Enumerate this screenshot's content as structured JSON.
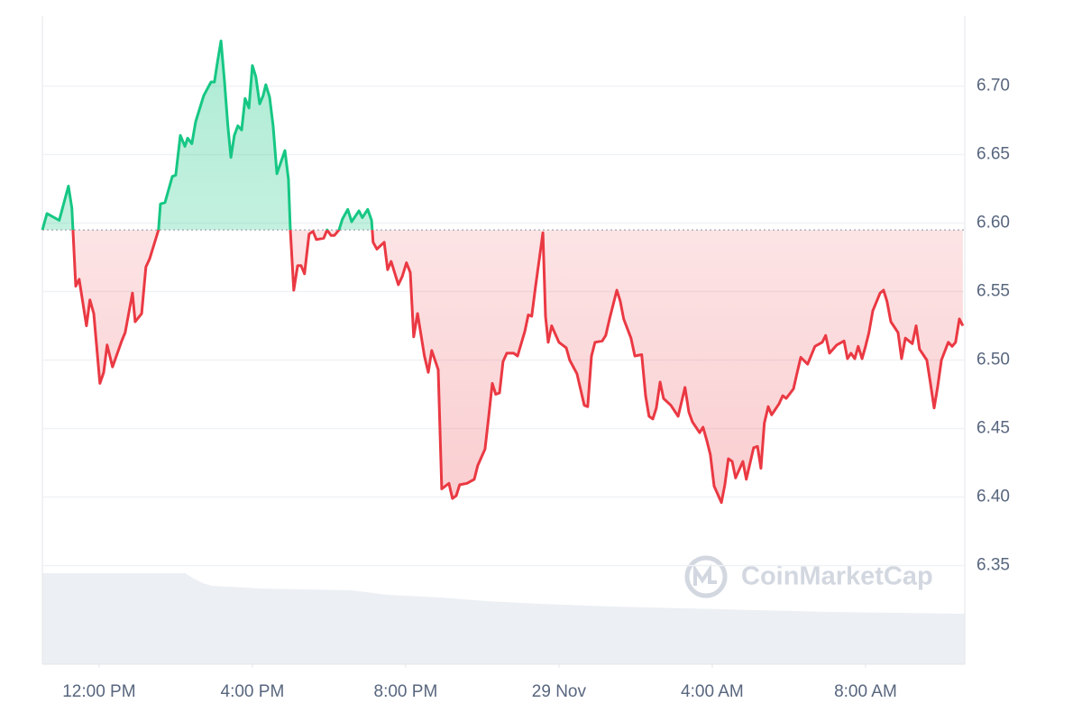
{
  "chart_data": {
    "type": "area",
    "x": [
      10.52,
      10.64,
      10.96,
      11.2,
      11.29,
      11.39,
      11.48,
      11.67,
      11.76,
      11.86,
      12.02,
      12.12,
      12.21,
      12.35,
      12.59,
      12.68,
      12.87,
      12.94,
      13.11,
      13.22,
      13.32,
      13.55,
      13.6,
      13.72,
      13.91,
      14.0,
      14.12,
      14.24,
      14.31,
      14.42,
      14.52,
      14.73,
      14.92,
      15.01,
      15.08,
      15.18,
      15.27,
      15.36,
      15.44,
      15.53,
      15.62,
      15.72,
      15.81,
      15.91,
      16.0,
      16.09,
      16.19,
      16.28,
      16.35,
      16.45,
      16.54,
      16.64,
      16.75,
      16.85,
      16.94,
      16.99,
      17.08,
      17.18,
      17.27,
      17.36,
      17.48,
      17.58,
      17.67,
      17.86,
      17.95,
      18.05,
      18.14,
      18.26,
      18.35,
      18.49,
      18.59,
      18.78,
      18.87,
      19.01,
      19.11,
      19.15,
      19.25,
      19.44,
      19.53,
      19.62,
      19.81,
      19.91,
      20.02,
      20.12,
      20.21,
      20.31,
      20.49,
      20.59,
      20.68,
      20.85,
      20.94,
      21.13,
      21.22,
      21.32,
      21.41,
      21.6,
      21.79,
      21.88,
      22.07,
      22.16,
      22.26,
      22.35,
      22.45,
      22.54,
      22.64,
      22.82,
      22.92,
      23.11,
      23.2,
      23.29,
      23.39,
      23.58,
      23.65,
      23.72,
      23.81,
      24.0,
      24.19,
      24.28,
      24.47,
      24.66,
      24.75,
      24.85,
      24.94,
      25.13,
      25.22,
      25.32,
      25.51,
      25.6,
      25.69,
      25.88,
      25.98,
      26.16,
      26.26,
      26.35,
      26.45,
      26.54,
      26.64,
      26.73,
      26.92,
      27.11,
      27.29,
      27.39,
      27.48,
      27.67,
      27.76,
      27.86,
      27.95,
      28.05,
      28.24,
      28.33,
      28.42,
      28.52,
      28.61,
      28.8,
      28.89,
      29.08,
      29.18,
      29.27,
      29.36,
      29.46,
      29.55,
      29.74,
      29.84,
      29.93,
      30.12,
      30.21,
      30.31,
      30.49,
      30.68,
      30.87,
      30.96,
      31.06,
      31.25,
      31.44,
      31.53,
      31.62,
      31.72,
      31.81,
      31.91,
      32.0,
      32.09,
      32.19,
      32.38,
      32.47,
      32.56,
      32.66,
      32.85,
      32.94,
      33.04,
      33.22,
      33.32,
      33.41,
      33.6,
      33.69,
      33.79,
      33.88,
      33.98,
      34.16,
      34.26,
      34.35,
      34.45,
      34.54
    ],
    "values": [
      6.595,
      6.607,
      6.602,
      6.627,
      6.611,
      6.554,
      6.559,
      6.525,
      6.544,
      6.534,
      6.483,
      6.491,
      6.511,
      6.495,
      6.514,
      6.52,
      6.549,
      6.528,
      6.534,
      6.568,
      6.574,
      6.595,
      6.614,
      6.615,
      6.634,
      6.635,
      6.664,
      6.656,
      6.662,
      6.658,
      6.674,
      6.693,
      6.703,
      6.703,
      6.716,
      6.733,
      6.704,
      6.671,
      6.648,
      6.664,
      6.671,
      6.668,
      6.691,
      6.684,
      6.715,
      6.707,
      6.687,
      6.693,
      6.701,
      6.692,
      6.671,
      6.636,
      6.645,
      6.653,
      6.632,
      6.595,
      6.551,
      6.569,
      6.569,
      6.563,
      6.592,
      6.594,
      6.588,
      6.589,
      6.595,
      6.591,
      6.591,
      6.595,
      6.603,
      6.61,
      6.601,
      6.609,
      6.604,
      6.61,
      6.602,
      6.586,
      6.581,
      6.586,
      6.566,
      6.572,
      6.555,
      6.561,
      6.571,
      6.564,
      6.517,
      6.534,
      6.503,
      6.491,
      6.507,
      6.493,
      6.406,
      6.41,
      6.399,
      6.401,
      6.409,
      6.41,
      6.413,
      6.423,
      6.435,
      6.457,
      6.483,
      6.475,
      6.476,
      6.499,
      6.505,
      6.505,
      6.503,
      6.521,
      6.533,
      6.532,
      6.554,
      6.593,
      6.532,
      6.513,
      6.525,
      6.513,
      6.509,
      6.5,
      6.49,
      6.467,
      6.466,
      6.503,
      6.513,
      6.514,
      6.518,
      6.53,
      6.551,
      6.543,
      6.53,
      6.516,
      6.503,
      6.504,
      6.474,
      6.459,
      6.457,
      6.465,
      6.484,
      6.472,
      6.467,
      6.459,
      6.48,
      6.462,
      6.455,
      6.447,
      6.451,
      6.441,
      6.431,
      6.408,
      6.396,
      6.409,
      6.428,
      6.426,
      6.414,
      6.426,
      6.413,
      6.436,
      6.437,
      6.421,
      6.454,
      6.466,
      6.46,
      6.468,
      6.474,
      6.472,
      6.479,
      6.49,
      6.502,
      6.497,
      6.51,
      6.513,
      6.518,
      6.505,
      6.511,
      6.514,
      6.501,
      6.505,
      6.501,
      6.51,
      6.501,
      6.51,
      6.52,
      6.536,
      6.549,
      6.551,
      6.543,
      6.528,
      6.52,
      6.501,
      6.516,
      6.512,
      6.525,
      6.508,
      6.5,
      6.484,
      6.465,
      6.48,
      6.5,
      6.513,
      6.51,
      6.513,
      6.53,
      6.525
    ],
    "baseline": 6.595,
    "up_color": "#16c784",
    "down_color": "#ea3943",
    "xlim": [
      10.52,
      34.59
    ],
    "xticks": [
      {
        "value": 12,
        "label": "12:00 PM"
      },
      {
        "value": 16,
        "label": "4:00 PM"
      },
      {
        "value": 20,
        "label": "8:00 PM"
      },
      {
        "value": 24,
        "label": "29 Nov"
      },
      {
        "value": 28,
        "label": "4:00 AM"
      },
      {
        "value": 32,
        "label": "8:00 AM"
      }
    ],
    "ylim": [
      6.278,
      6.751
    ],
    "yticks": [
      6.35,
      {
        "value": 6.4,
        "label": "6.40"
      },
      6.45,
      {
        "value": 6.5,
        "label": "6.50"
      },
      6.55,
      {
        "value": 6.6,
        "label": "6.60"
      },
      6.65,
      {
        "value": 6.7,
        "label": "6.70"
      }
    ],
    "grid": true,
    "watermark": "CoinMarketCap"
  }
}
